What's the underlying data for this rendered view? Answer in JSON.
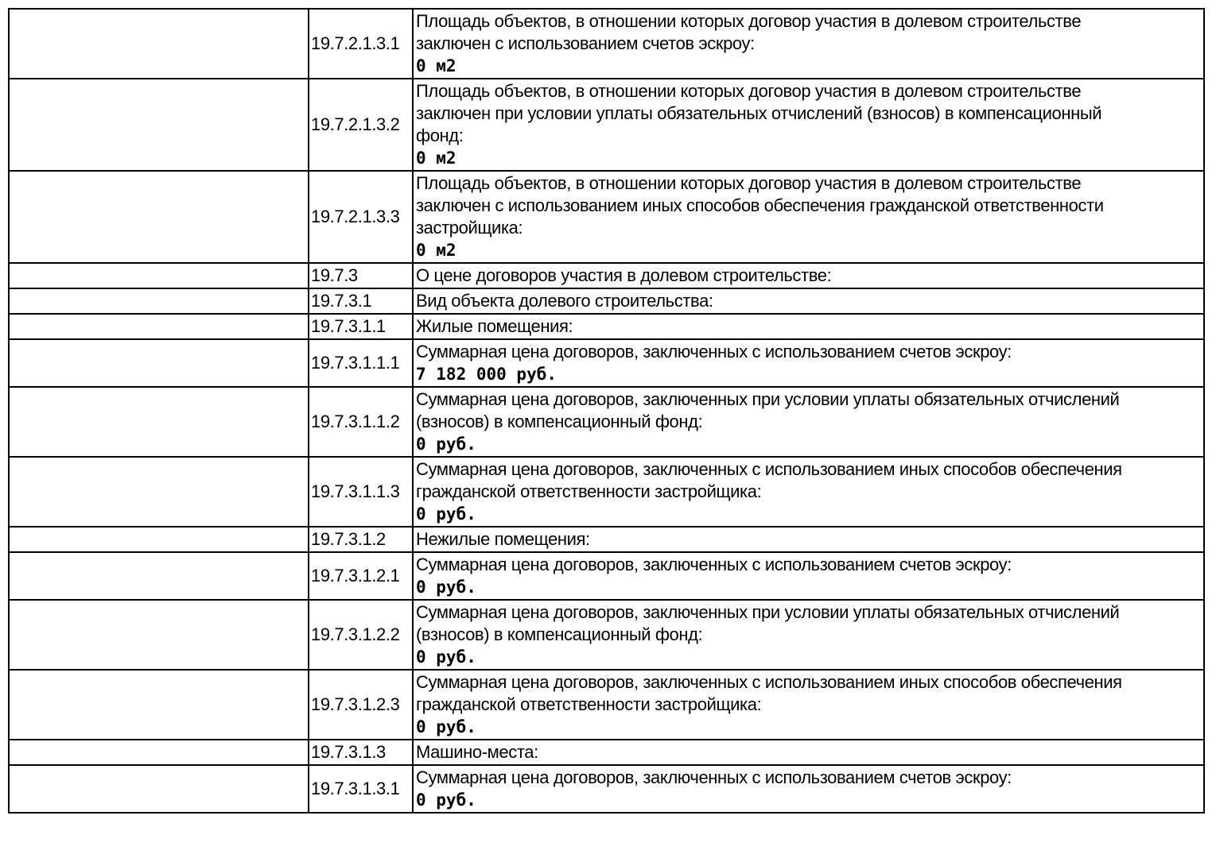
{
  "page": {
    "background_color": "#ffffff",
    "text_color": "#000000",
    "border_color": "#000000"
  },
  "table": {
    "rows": [
      {
        "number": "19.7.2.1.3.1",
        "label": "Площадь объектов, в отношении которых договор участия в долевом строительстве\nзаключен с использованием счетов эскроу:",
        "value": "0 м2"
      },
      {
        "number": "19.7.2.1.3.2",
        "label": "Площадь объектов, в отношении которых договор участия в долевом строительстве\nзаключен при условии уплаты обязательных отчислений (взносов) в компенсационный\nфонд:",
        "value": "0 м2"
      },
      {
        "number": "19.7.2.1.3.3",
        "label": "Площадь объектов, в отношении которых договор участия в долевом строительстве\nзаключен с использованием иных способов обеспечения гражданской ответственности\nзастройщика:",
        "value": "0 м2"
      },
      {
        "number": "19.7.3",
        "label": "О цене договоров участия в долевом строительстве:",
        "value": ""
      },
      {
        "number": "19.7.3.1",
        "label": "Вид объекта долевого строительства:",
        "value": ""
      },
      {
        "number": "19.7.3.1.1",
        "label": "Жилые помещения:",
        "value": ""
      },
      {
        "number": "19.7.3.1.1.1",
        "label": "Суммарная цена договоров, заключенных с использованием счетов эскроу:",
        "value": "7 182 000 руб."
      },
      {
        "number": "19.7.3.1.1.2",
        "label": "Суммарная цена договоров, заключенных при условии уплаты обязательных отчислений\n(взносов) в компенсационный фонд:",
        "value": "0 руб."
      },
      {
        "number": "19.7.3.1.1.3",
        "label": "Суммарная цена договоров, заключенных с использованием иных способов обеспечения\nгражданской ответственности застройщика:",
        "value": "0 руб."
      },
      {
        "number": "19.7.3.1.2",
        "label": "Нежилые помещения:",
        "value": ""
      },
      {
        "number": "19.7.3.1.2.1",
        "label": "Суммарная цена договоров, заключенных с использованием счетов эскроу:",
        "value": "0 руб."
      },
      {
        "number": "19.7.3.1.2.2",
        "label": "Суммарная цена договоров, заключенных при условии уплаты обязательных отчислений\n(взносов) в компенсационный фонд:",
        "value": "0 руб."
      },
      {
        "number": "19.7.3.1.2.3",
        "label": "Суммарная цена договоров, заключенных с использованием иных способов обеспечения\nгражданской ответственности застройщика:",
        "value": "0 руб."
      },
      {
        "number": "19.7.3.1.3",
        "label": "Машино-места:",
        "value": ""
      },
      {
        "number": "19.7.3.1.3.1",
        "label": "Суммарная цена договоров, заключенных с использованием счетов эскроу:",
        "value": "0 руб."
      }
    ]
  }
}
